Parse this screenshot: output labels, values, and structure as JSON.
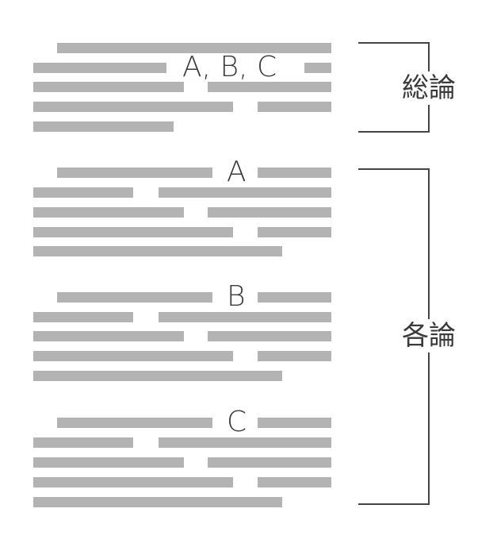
{
  "summary_block": {
    "marker": "A, B, C"
  },
  "section_blocks": [
    {
      "marker": "A"
    },
    {
      "marker": "B"
    },
    {
      "marker": "C"
    }
  ],
  "brackets": {
    "summary_label": "総論",
    "sections_label": "各論"
  }
}
